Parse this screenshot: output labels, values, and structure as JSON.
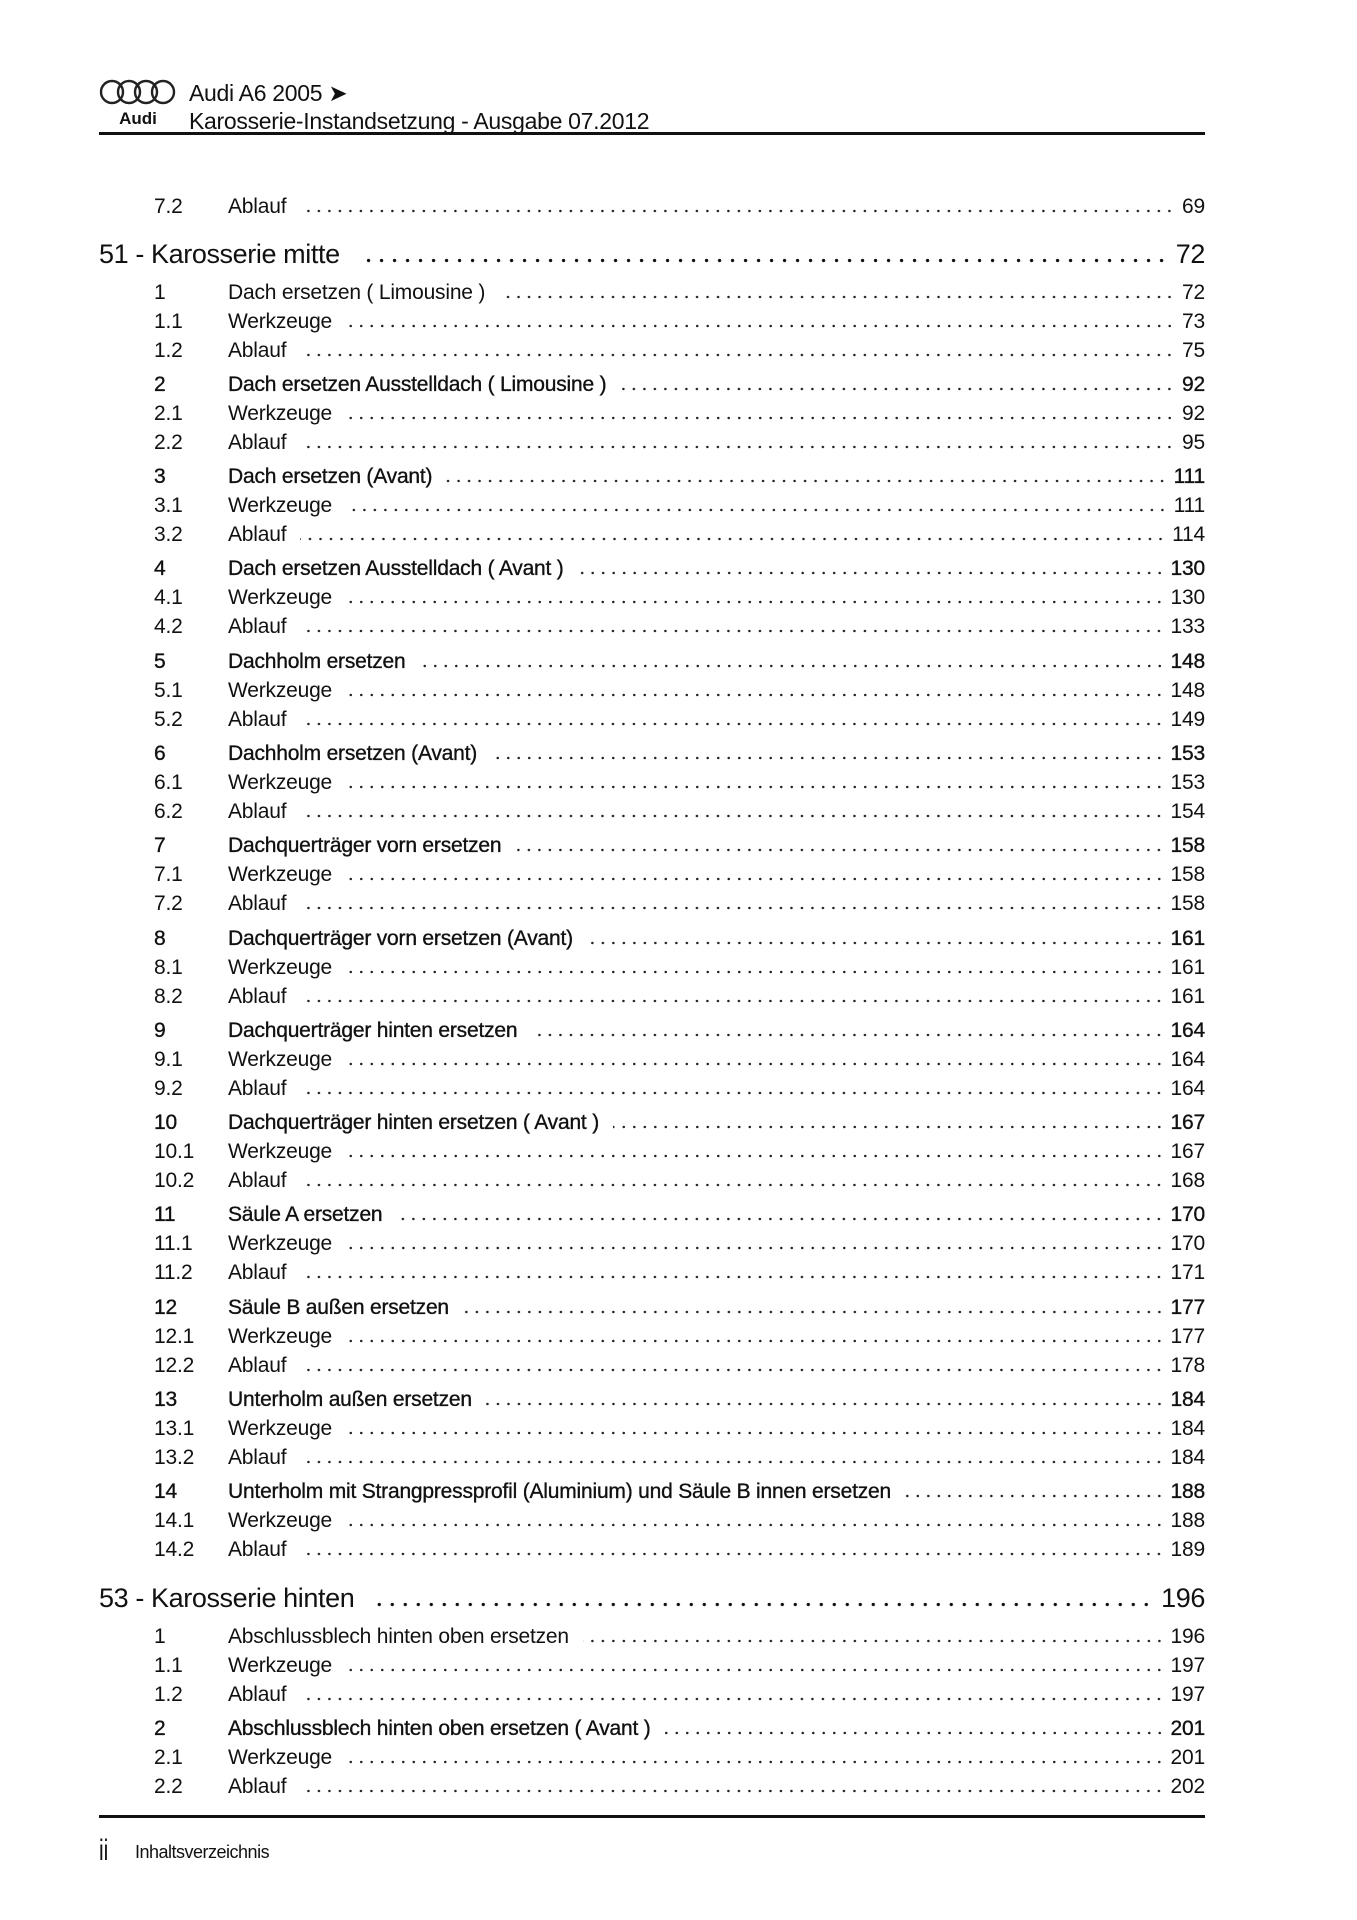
{
  "header": {
    "brand": "Audi",
    "model_line": "Audi A6 2005 ➤",
    "subtitle": "Karosserie-Instandsetzung - Ausgabe 07.2012"
  },
  "toc": {
    "lead_rows": [
      {
        "num": "7.2",
        "title": "Ablauf",
        "page": "69",
        "main": false
      }
    ],
    "chapters": [
      {
        "title": "51 - Karosserie mitte",
        "page": "72",
        "entries": [
          {
            "num": "1",
            "title": "Dach ersetzen ( Limousine )",
            "page": "72",
            "main": true
          },
          {
            "num": "1.1",
            "title": "Werkzeuge",
            "page": "73"
          },
          {
            "num": "1.2",
            "title": "Ablauf",
            "page": "75"
          },
          {
            "num": "2",
            "title": "Dach ersetzen Ausstelldach ( Limousine )",
            "page": "92",
            "main": true
          },
          {
            "num": "2.1",
            "title": "Werkzeuge",
            "page": "92"
          },
          {
            "num": "2.2",
            "title": "Ablauf",
            "page": "95"
          },
          {
            "num": "3",
            "title": "Dach ersetzen (Avant)",
            "page": "111",
            "main": true
          },
          {
            "num": "3.1",
            "title": "Werkzeuge",
            "page": "111"
          },
          {
            "num": "3.2",
            "title": "Ablauf",
            "page": "114"
          },
          {
            "num": "4",
            "title": "Dach ersetzen Ausstelldach ( Avant )",
            "page": "130",
            "main": true
          },
          {
            "num": "4.1",
            "title": "Werkzeuge",
            "page": "130"
          },
          {
            "num": "4.2",
            "title": "Ablauf",
            "page": "133"
          },
          {
            "num": "5",
            "title": "Dachholm ersetzen",
            "page": "148",
            "main": true
          },
          {
            "num": "5.1",
            "title": "Werkzeuge",
            "page": "148"
          },
          {
            "num": "5.2",
            "title": "Ablauf",
            "page": "149"
          },
          {
            "num": "6",
            "title": "Dachholm ersetzen (Avant)",
            "page": "153",
            "main": true
          },
          {
            "num": "6.1",
            "title": "Werkzeuge",
            "page": "153"
          },
          {
            "num": "6.2",
            "title": "Ablauf",
            "page": "154"
          },
          {
            "num": "7",
            "title": "Dachquerträger vorn ersetzen",
            "page": "158",
            "main": true
          },
          {
            "num": "7.1",
            "title": "Werkzeuge",
            "page": "158"
          },
          {
            "num": "7.2",
            "title": "Ablauf",
            "page": "158"
          },
          {
            "num": "8",
            "title": "Dachquerträger vorn ersetzen (Avant)",
            "page": "161",
            "main": true
          },
          {
            "num": "8.1",
            "title": "Werkzeuge",
            "page": "161"
          },
          {
            "num": "8.2",
            "title": "Ablauf",
            "page": "161"
          },
          {
            "num": "9",
            "title": "Dachquerträger hinten ersetzen",
            "page": "164",
            "main": true
          },
          {
            "num": "9.1",
            "title": "Werkzeuge",
            "page": "164"
          },
          {
            "num": "9.2",
            "title": "Ablauf",
            "page": "164"
          },
          {
            "num": "10",
            "title": "Dachquerträger hinten ersetzen ( Avant )",
            "page": "167",
            "main": true
          },
          {
            "num": "10.1",
            "title": "Werkzeuge",
            "page": "167"
          },
          {
            "num": "10.2",
            "title": "Ablauf",
            "page": "168"
          },
          {
            "num": "11",
            "title": "Säule A ersetzen",
            "page": "170",
            "main": true
          },
          {
            "num": "11.1",
            "title": "Werkzeuge",
            "page": "170"
          },
          {
            "num": "11.2",
            "title": "Ablauf",
            "page": "171"
          },
          {
            "num": "12",
            "title": "Säule B außen ersetzen",
            "page": "177",
            "main": true
          },
          {
            "num": "12.1",
            "title": "Werkzeuge",
            "page": "177"
          },
          {
            "num": "12.2",
            "title": "Ablauf",
            "page": "178"
          },
          {
            "num": "13",
            "title": "Unterholm außen ersetzen",
            "page": "184",
            "main": true
          },
          {
            "num": "13.1",
            "title": "Werkzeuge",
            "page": "184"
          },
          {
            "num": "13.2",
            "title": "Ablauf",
            "page": "184"
          },
          {
            "num": "14",
            "title": "Unterholm mit Strangpressprofil (Aluminium) und Säule B innen ersetzen",
            "page": "188",
            "main": true
          },
          {
            "num": "14.1",
            "title": "Werkzeuge",
            "page": "188"
          },
          {
            "num": "14.2",
            "title": "Ablauf",
            "page": "189"
          }
        ]
      },
      {
        "title": "53 - Karosserie hinten",
        "page": "196",
        "entries": [
          {
            "num": "1",
            "title": "Abschlussblech hinten oben ersetzen",
            "page": "196",
            "main": true
          },
          {
            "num": "1.1",
            "title": "Werkzeuge",
            "page": "197"
          },
          {
            "num": "1.2",
            "title": "Ablauf",
            "page": "197"
          },
          {
            "num": "2",
            "title": "Abschlussblech hinten oben ersetzen ( Avant )",
            "page": "201",
            "main": true
          },
          {
            "num": "2.1",
            "title": "Werkzeuge",
            "page": "201"
          },
          {
            "num": "2.2",
            "title": "Ablauf",
            "page": "202"
          }
        ]
      }
    ]
  },
  "footer": {
    "page_number": "ii",
    "section": "Inhaltsverzeichnis"
  }
}
